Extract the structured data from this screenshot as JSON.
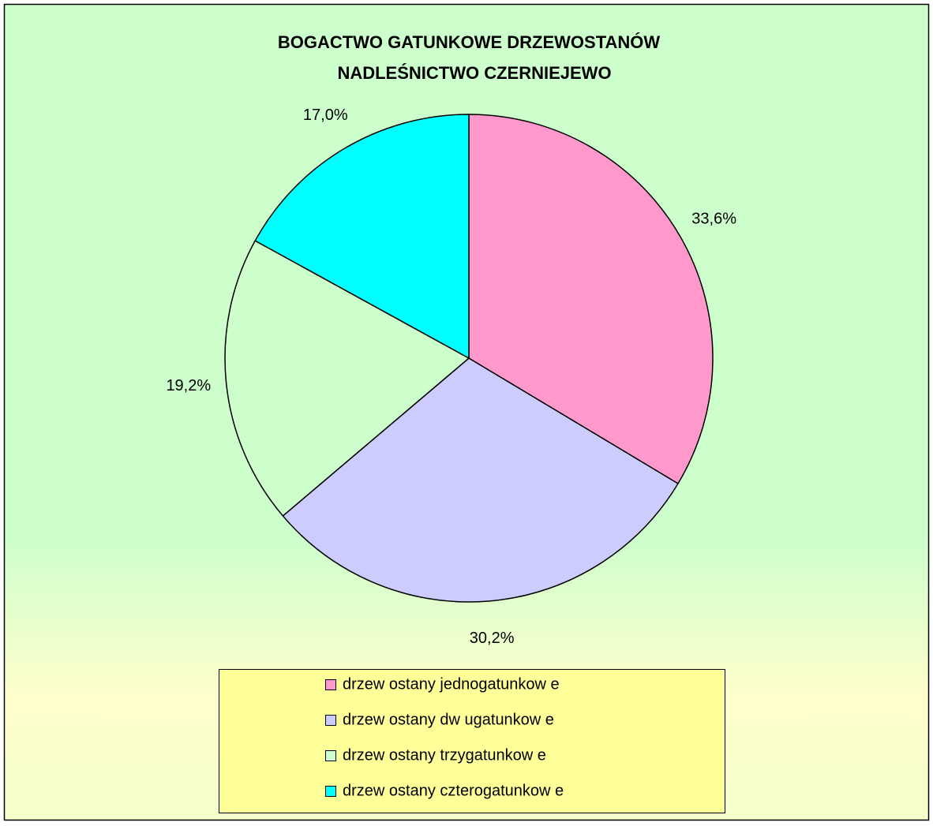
{
  "chart_data": {
    "type": "pie",
    "title": [
      "BOGACTWO GATUNKOWE DRZEWOSTANÓW",
      "NADLEŚNICTWO CZERNIEJEWO"
    ],
    "categories": [
      "drzew ostany jednogatunkow e",
      "drzew ostany dw ugatunkow e",
      "drzew ostany trzygatunkow e",
      "drzew ostany czterogatunkow e"
    ],
    "values": [
      33.6,
      30.2,
      19.2,
      17.0
    ],
    "value_labels": [
      "33,6%",
      "30,2%",
      "19,2%",
      "17,0%"
    ],
    "colors": [
      "#ff99cc",
      "#ccccff",
      "#ccffcc",
      "#00ffff"
    ]
  }
}
